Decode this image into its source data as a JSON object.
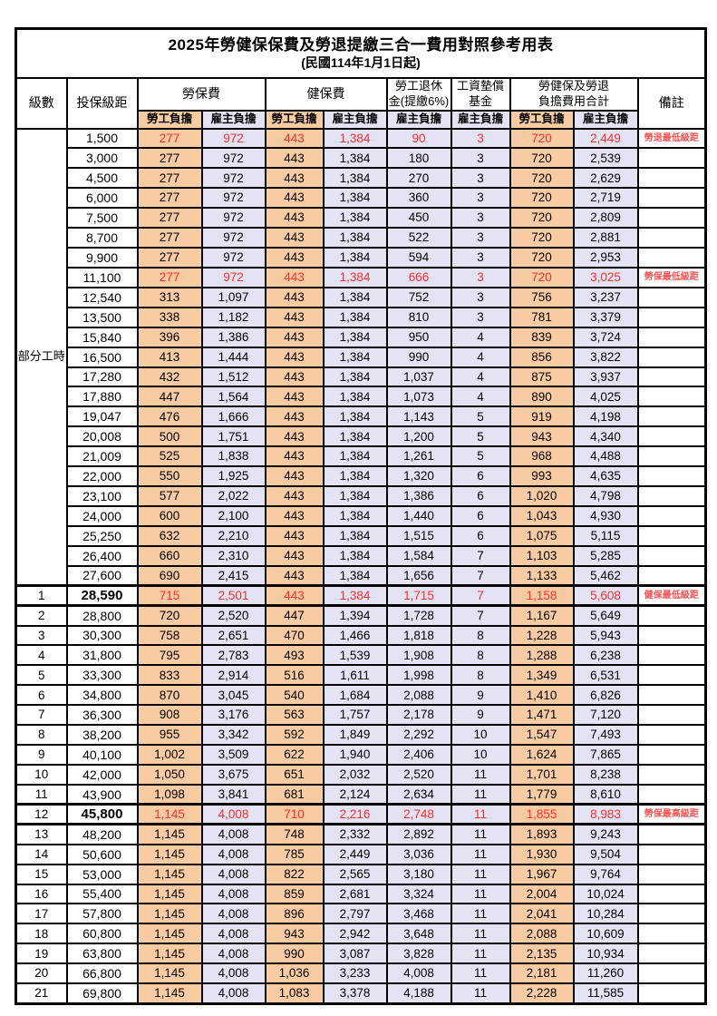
{
  "title": {
    "line1": "2025年勞健保保費及勞退提繳三合一費用對照參考用表",
    "line2": "(民國114年1月1日起)"
  },
  "header": {
    "level": "級數",
    "salary": "投保級距",
    "labor": "勞保費",
    "health": "健保費",
    "pension_line1": "勞工退休",
    "pension_line2": "金(提繳6%)",
    "fund_line1": "工資墊償",
    "fund_line2": "基金",
    "total_line1": "勞健保及勞退",
    "total_line2": "負擔費用合計",
    "note": "備註",
    "employee": "勞工負擔",
    "employer": "雇主負擔"
  },
  "part_time_label": "部分工時",
  "colors": {
    "employee_bg": "#F8CBA2",
    "employer_bg": "#E4E3F3",
    "highlight_text": "#FF2D2D",
    "note_text": "#FF5050",
    "border": "#000000"
  },
  "part_time_rows": [
    {
      "salary": "1,500",
      "values": [
        "277",
        "972",
        "443",
        "1,384",
        "90",
        "3",
        "720",
        "2,449"
      ],
      "note": "勞退最低級距",
      "highlight": true
    },
    {
      "salary": "3,000",
      "values": [
        "277",
        "972",
        "443",
        "1,384",
        "180",
        "3",
        "720",
        "2,539"
      ],
      "note": ""
    },
    {
      "salary": "4,500",
      "values": [
        "277",
        "972",
        "443",
        "1,384",
        "270",
        "3",
        "720",
        "2,629"
      ],
      "note": ""
    },
    {
      "salary": "6,000",
      "values": [
        "277",
        "972",
        "443",
        "1,384",
        "360",
        "3",
        "720",
        "2,719"
      ],
      "note": ""
    },
    {
      "salary": "7,500",
      "values": [
        "277",
        "972",
        "443",
        "1,384",
        "450",
        "3",
        "720",
        "2,809"
      ],
      "note": ""
    },
    {
      "salary": "8,700",
      "values": [
        "277",
        "972",
        "443",
        "1,384",
        "522",
        "3",
        "720",
        "2,881"
      ],
      "note": ""
    },
    {
      "salary": "9,900",
      "values": [
        "277",
        "972",
        "443",
        "1,384",
        "594",
        "3",
        "720",
        "2,953"
      ],
      "note": ""
    },
    {
      "salary": "11,100",
      "values": [
        "277",
        "972",
        "443",
        "1,384",
        "666",
        "3",
        "720",
        "3,025"
      ],
      "note": "勞保最低級距",
      "highlight": true
    },
    {
      "salary": "12,540",
      "values": [
        "313",
        "1,097",
        "443",
        "1,384",
        "752",
        "3",
        "756",
        "3,237"
      ],
      "note": ""
    },
    {
      "salary": "13,500",
      "values": [
        "338",
        "1,182",
        "443",
        "1,384",
        "810",
        "3",
        "781",
        "3,379"
      ],
      "note": ""
    },
    {
      "salary": "15,840",
      "values": [
        "396",
        "1,386",
        "443",
        "1,384",
        "950",
        "4",
        "839",
        "3,724"
      ],
      "note": ""
    },
    {
      "salary": "16,500",
      "values": [
        "413",
        "1,444",
        "443",
        "1,384",
        "990",
        "4",
        "856",
        "3,822"
      ],
      "note": ""
    },
    {
      "salary": "17,280",
      "values": [
        "432",
        "1,512",
        "443",
        "1,384",
        "1,037",
        "4",
        "875",
        "3,937"
      ],
      "note": ""
    },
    {
      "salary": "17,880",
      "values": [
        "447",
        "1,564",
        "443",
        "1,384",
        "1,073",
        "4",
        "890",
        "4,025"
      ],
      "note": ""
    },
    {
      "salary": "19,047",
      "values": [
        "476",
        "1,666",
        "443",
        "1,384",
        "1,143",
        "5",
        "919",
        "4,198"
      ],
      "note": ""
    },
    {
      "salary": "20,008",
      "values": [
        "500",
        "1,751",
        "443",
        "1,384",
        "1,200",
        "5",
        "943",
        "4,340"
      ],
      "note": ""
    },
    {
      "salary": "21,009",
      "values": [
        "525",
        "1,838",
        "443",
        "1,384",
        "1,261",
        "5",
        "968",
        "4,488"
      ],
      "note": ""
    },
    {
      "salary": "22,000",
      "values": [
        "550",
        "1,925",
        "443",
        "1,384",
        "1,320",
        "6",
        "993",
        "4,635"
      ],
      "note": ""
    },
    {
      "salary": "23,100",
      "values": [
        "577",
        "2,022",
        "443",
        "1,384",
        "1,386",
        "6",
        "1,020",
        "4,798"
      ],
      "note": ""
    },
    {
      "salary": "24,000",
      "values": [
        "600",
        "2,100",
        "443",
        "1,384",
        "1,440",
        "6",
        "1,043",
        "4,930"
      ],
      "note": ""
    },
    {
      "salary": "25,250",
      "values": [
        "632",
        "2,210",
        "443",
        "1,384",
        "1,515",
        "6",
        "1,075",
        "5,115"
      ],
      "note": ""
    },
    {
      "salary": "26,400",
      "values": [
        "660",
        "2,310",
        "443",
        "1,384",
        "1,584",
        "7",
        "1,103",
        "5,285"
      ],
      "note": ""
    },
    {
      "salary": "27,600",
      "values": [
        "690",
        "2,415",
        "443",
        "1,384",
        "1,656",
        "7",
        "1,133",
        "5,462"
      ],
      "note": ""
    }
  ],
  "numbered_rows": [
    {
      "level": "1",
      "salary": "28,590",
      "values": [
        "715",
        "2,501",
        "443",
        "1,384",
        "1,715",
        "7",
        "1,158",
        "5,608"
      ],
      "note": "健保最低級距",
      "highlight": true,
      "thick": true,
      "salary_bold": true
    },
    {
      "level": "2",
      "salary": "28,800",
      "values": [
        "720",
        "2,520",
        "447",
        "1,394",
        "1,728",
        "7",
        "1,167",
        "5,649"
      ],
      "note": ""
    },
    {
      "level": "3",
      "salary": "30,300",
      "values": [
        "758",
        "2,651",
        "470",
        "1,466",
        "1,818",
        "8",
        "1,228",
        "5,943"
      ],
      "note": ""
    },
    {
      "level": "4",
      "salary": "31,800",
      "values": [
        "795",
        "2,783",
        "493",
        "1,539",
        "1,908",
        "8",
        "1,288",
        "6,238"
      ],
      "note": ""
    },
    {
      "level": "5",
      "salary": "33,300",
      "values": [
        "833",
        "2,914",
        "516",
        "1,611",
        "1,998",
        "8",
        "1,349",
        "6,531"
      ],
      "note": ""
    },
    {
      "level": "6",
      "salary": "34,800",
      "values": [
        "870",
        "3,045",
        "540",
        "1,684",
        "2,088",
        "9",
        "1,410",
        "6,826"
      ],
      "note": ""
    },
    {
      "level": "7",
      "salary": "36,300",
      "values": [
        "908",
        "3,176",
        "563",
        "1,757",
        "2,178",
        "9",
        "1,471",
        "7,120"
      ],
      "note": ""
    },
    {
      "level": "8",
      "salary": "38,200",
      "values": [
        "955",
        "3,342",
        "592",
        "1,849",
        "2,292",
        "10",
        "1,547",
        "7,493"
      ],
      "note": ""
    },
    {
      "level": "9",
      "salary": "40,100",
      "values": [
        "1,002",
        "3,509",
        "622",
        "1,940",
        "2,406",
        "10",
        "1,624",
        "7,865"
      ],
      "note": ""
    },
    {
      "level": "10",
      "salary": "42,000",
      "values": [
        "1,050",
        "3,675",
        "651",
        "2,032",
        "2,520",
        "11",
        "1,701",
        "8,238"
      ],
      "note": ""
    },
    {
      "level": "11",
      "salary": "43,900",
      "values": [
        "1,098",
        "3,841",
        "681",
        "2,124",
        "2,634",
        "11",
        "1,779",
        "8,610"
      ],
      "note": ""
    },
    {
      "level": "12",
      "salary": "45,800",
      "values": [
        "1,145",
        "4,008",
        "710",
        "2,216",
        "2,748",
        "11",
        "1,855",
        "8,983"
      ],
      "note": "勞保最高級距",
      "highlight": true,
      "thick": true,
      "salary_bold": true
    },
    {
      "level": "13",
      "salary": "48,200",
      "values": [
        "1,145",
        "4,008",
        "748",
        "2,332",
        "2,892",
        "11",
        "1,893",
        "9,243"
      ],
      "note": ""
    },
    {
      "level": "14",
      "salary": "50,600",
      "values": [
        "1,145",
        "4,008",
        "785",
        "2,449",
        "3,036",
        "11",
        "1,930",
        "9,504"
      ],
      "note": ""
    },
    {
      "level": "15",
      "salary": "53,000",
      "values": [
        "1,145",
        "4,008",
        "822",
        "2,565",
        "3,180",
        "11",
        "1,967",
        "9,764"
      ],
      "note": ""
    },
    {
      "level": "16",
      "salary": "55,400",
      "values": [
        "1,145",
        "4,008",
        "859",
        "2,681",
        "3,324",
        "11",
        "2,004",
        "10,024"
      ],
      "note": ""
    },
    {
      "level": "17",
      "salary": "57,800",
      "values": [
        "1,145",
        "4,008",
        "896",
        "2,797",
        "3,468",
        "11",
        "2,041",
        "10,284"
      ],
      "note": ""
    },
    {
      "level": "18",
      "salary": "60,800",
      "values": [
        "1,145",
        "4,008",
        "943",
        "2,942",
        "3,648",
        "11",
        "2,088",
        "10,609"
      ],
      "note": ""
    },
    {
      "level": "19",
      "salary": "63,800",
      "values": [
        "1,145",
        "4,008",
        "990",
        "3,087",
        "3,828",
        "11",
        "2,135",
        "10,934"
      ],
      "note": ""
    },
    {
      "level": "20",
      "salary": "66,800",
      "values": [
        "1,145",
        "4,008",
        "1,036",
        "3,233",
        "4,008",
        "11",
        "2,181",
        "11,260"
      ],
      "note": ""
    },
    {
      "level": "21",
      "salary": "69,800",
      "values": [
        "1,145",
        "4,008",
        "1,083",
        "3,378",
        "4,188",
        "11",
        "2,228",
        "11,585"
      ],
      "note": ""
    }
  ]
}
